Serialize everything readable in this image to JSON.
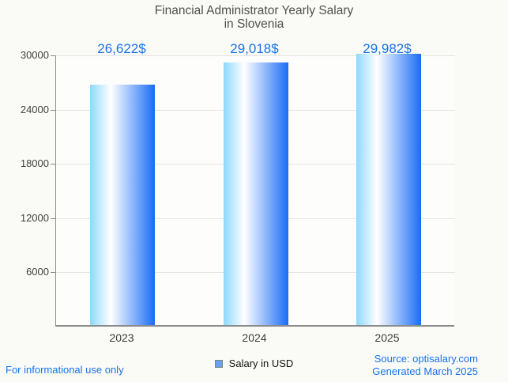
{
  "chart_data": {
    "type": "bar",
    "title": "Financial Administrator Yearly Salary in Slovenia",
    "title_lines": [
      "Financial Administrator Yearly Salary",
      "in Slovenia"
    ],
    "categories": [
      "2023",
      "2024",
      "2025"
    ],
    "values": [
      26622,
      29018,
      29982
    ],
    "value_labels": [
      "26,622$",
      "29,018$",
      "29,982$"
    ],
    "series_name": "Salary in USD",
    "xlabel": "",
    "ylabel": "",
    "ylim": [
      0,
      30000
    ],
    "yticks": [
      30000,
      24000,
      18000,
      12000,
      6000
    ],
    "ytick_labels": [
      "30000",
      "24000",
      "18000",
      "12000",
      "6000"
    ],
    "grid": true,
    "legend_position": "bottom"
  },
  "legend": {
    "label": "Salary in USD"
  },
  "footer": {
    "left_note": "For informational use only",
    "source_line": "Source: optisalary.com",
    "generated_line": "Generated March 2025"
  },
  "colors": {
    "accent_blue": "#1a73e8",
    "bar_gradient_left": "#8ed9fc",
    "bar_gradient_mid": "#ffffff",
    "bar_gradient_right": "#1a6cf6",
    "legend_marker": "#66a3e8",
    "axis_line": "#8c8c8c",
    "gridline": "#e4e4e4",
    "title_text": "#4f4f4f"
  }
}
